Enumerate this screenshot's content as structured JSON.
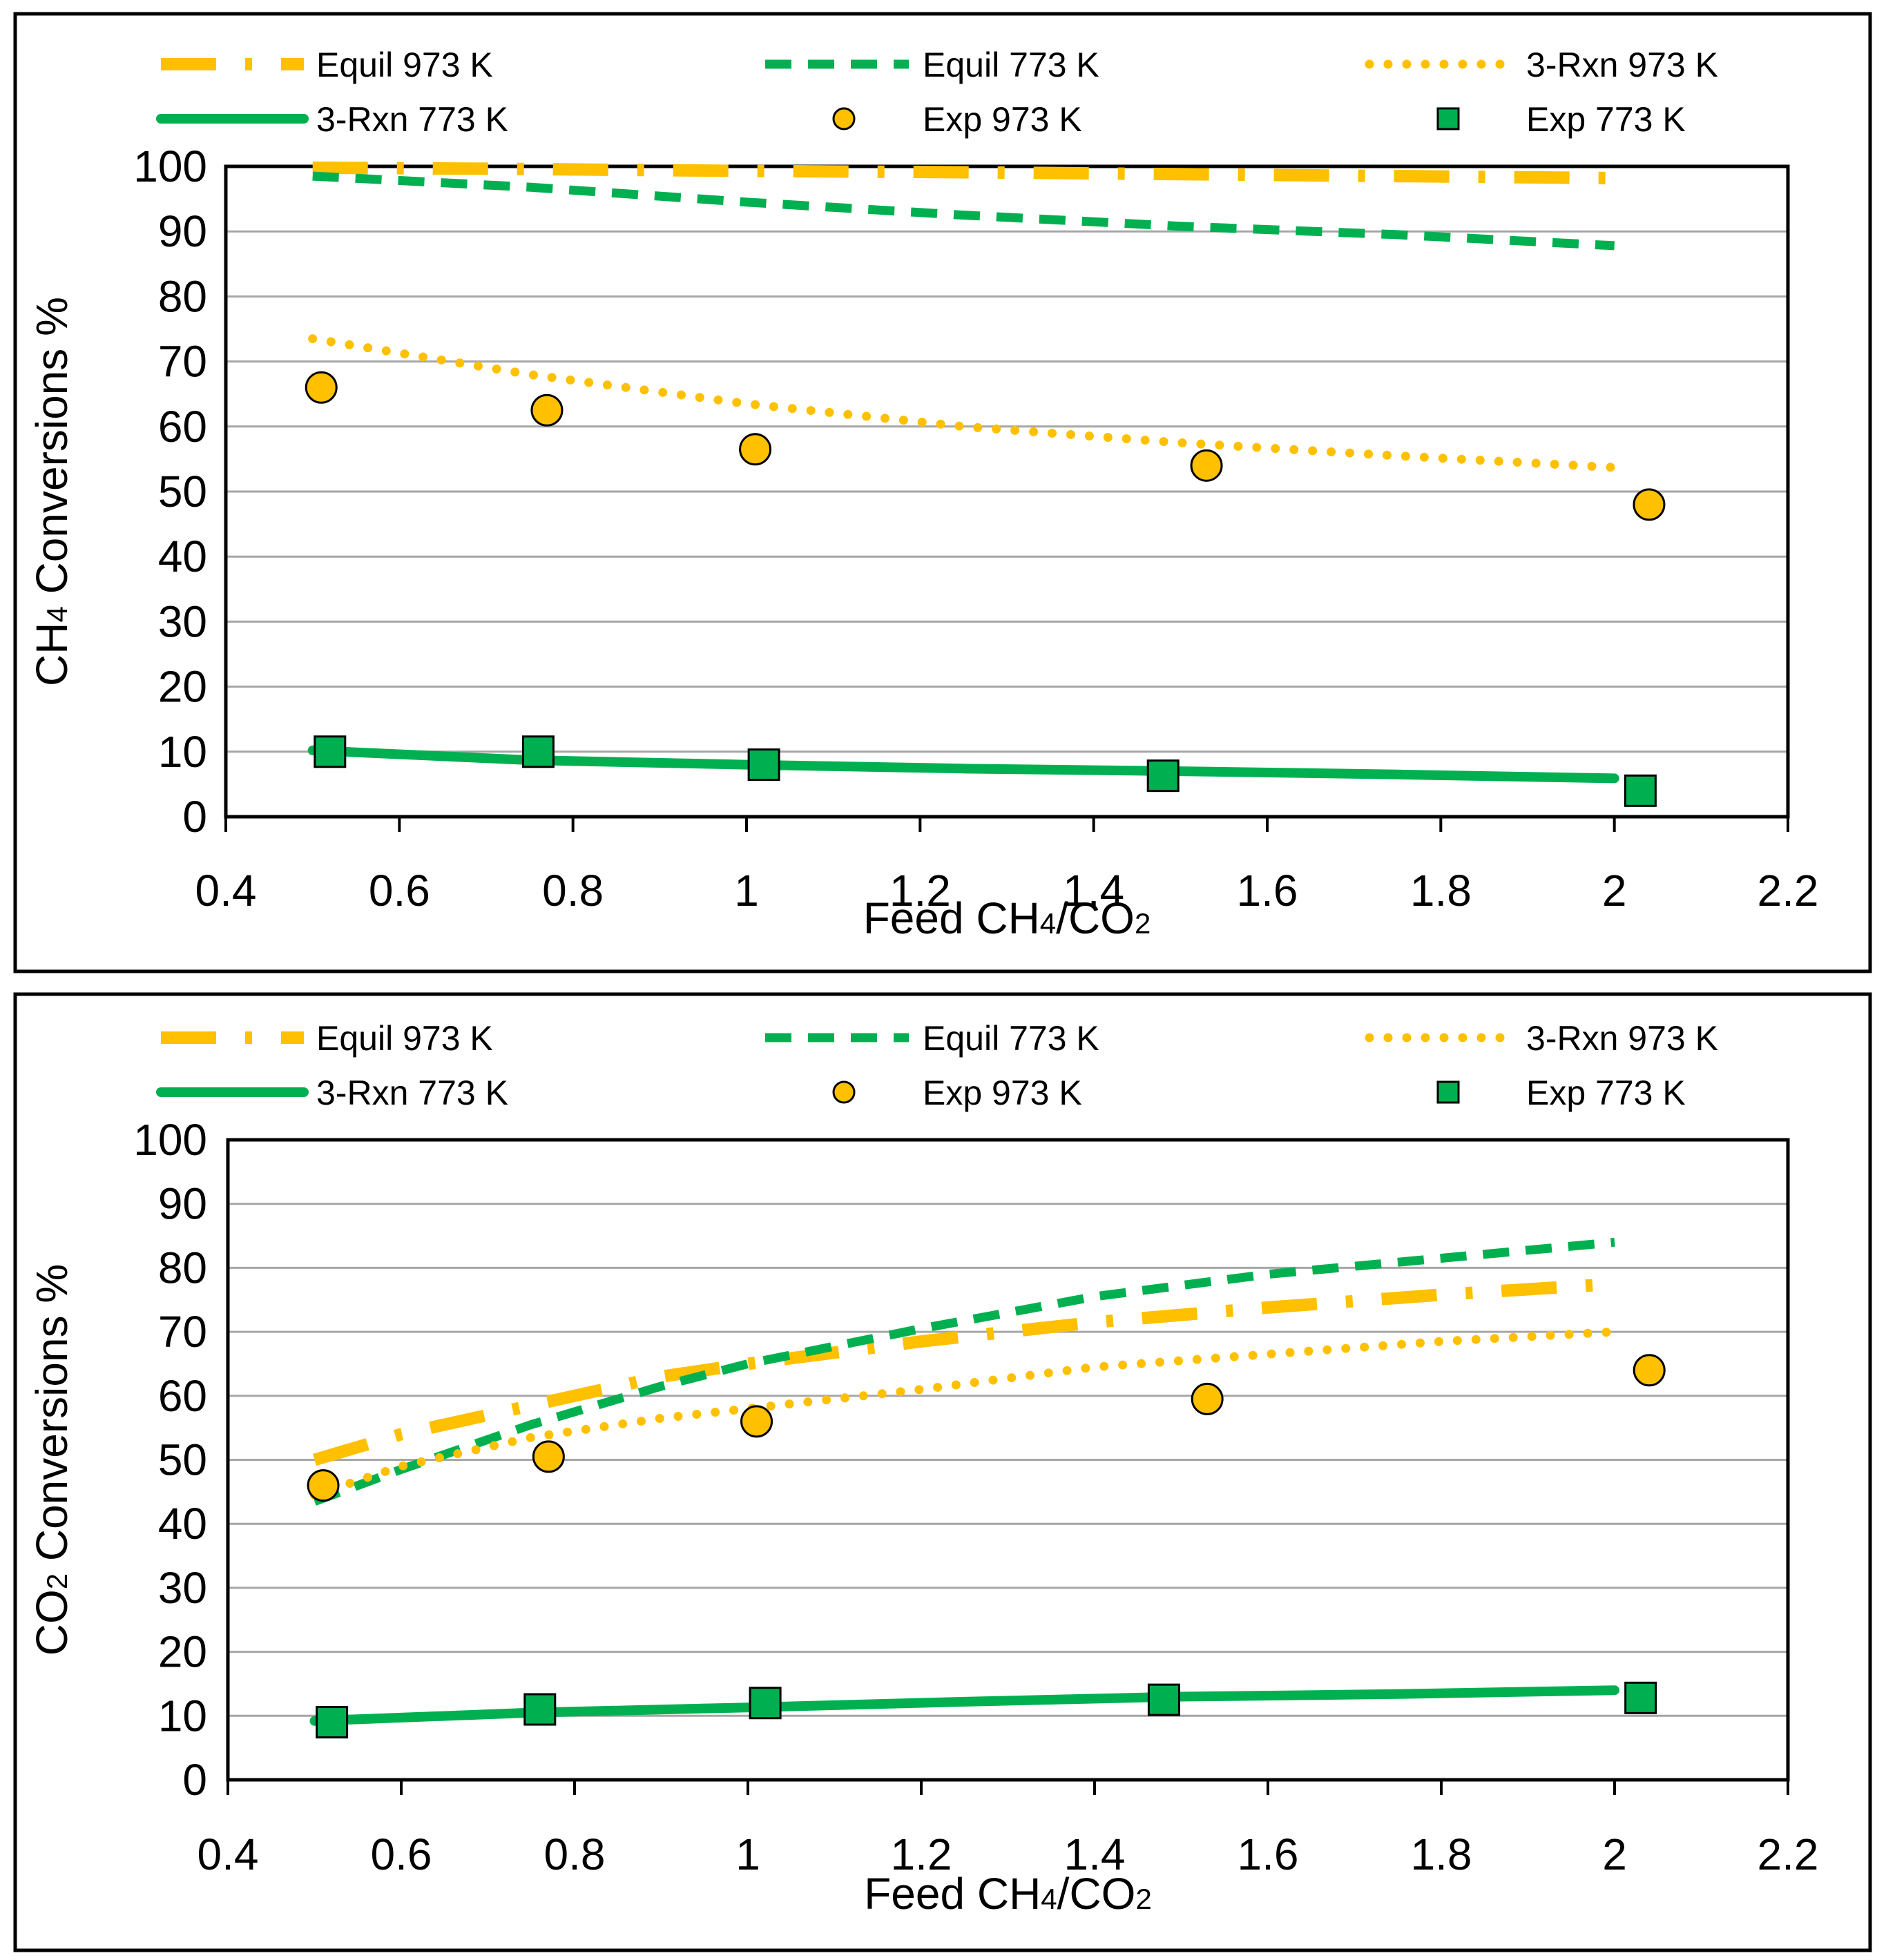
{
  "colors": {
    "gold": "#FFC000",
    "green": "#00B050",
    "grid": "#A6A6A6",
    "frame": "#000000"
  },
  "chart_data": [
    {
      "type": "line",
      "ylabel_parts": [
        "CH",
        "4",
        " Conversions %"
      ],
      "xlabel_parts": [
        "Feed CH",
        "4",
        "/CO",
        "2"
      ],
      "xlim": [
        0.4,
        2.2
      ],
      "ylim": [
        0,
        100
      ],
      "xticks": [
        "0.4",
        "0.6",
        "0.8",
        "1",
        "1.2",
        "1.4",
        "1.6",
        "1.8",
        "2",
        "2.2"
      ],
      "yticks": [
        "0",
        "10",
        "20",
        "30",
        "40",
        "50",
        "60",
        "70",
        "80",
        "90",
        "100"
      ],
      "grid": "horizontal",
      "legend_position": "top",
      "series": [
        {
          "name": "Equil 973 K",
          "style": "dashdot",
          "color": "gold",
          "x": [
            0.5,
            0.75,
            1.0,
            1.25,
            1.5,
            1.75,
            2.0
          ],
          "y": [
            99.8,
            99.6,
            99.3,
            99.1,
            98.8,
            98.5,
            98.2
          ]
        },
        {
          "name": "Equil 773 K",
          "style": "dashed",
          "color": "green",
          "x": [
            0.5,
            0.75,
            1.0,
            1.25,
            1.5,
            1.75,
            2.0
          ],
          "y": [
            98.5,
            96.8,
            94.5,
            92.5,
            90.8,
            89.5,
            87.8
          ]
        },
        {
          "name": "3-Rxn 973 K",
          "style": "dotted",
          "color": "gold",
          "x": [
            0.5,
            0.75,
            1.0,
            1.25,
            1.5,
            1.75,
            2.0
          ],
          "y": [
            73.5,
            68.0,
            63.5,
            60.0,
            57.5,
            55.5,
            53.7
          ]
        },
        {
          "name": "3-Rxn 773 K",
          "style": "solid",
          "color": "green",
          "x": [
            0.5,
            0.75,
            1.0,
            1.25,
            1.5,
            1.75,
            2.0
          ],
          "y": [
            10.2,
            8.7,
            8.0,
            7.4,
            7.0,
            6.5,
            5.9
          ]
        },
        {
          "name": "Exp 973 K",
          "style": "circle",
          "color": "gold",
          "x": [
            0.51,
            0.77,
            1.01,
            1.53,
            2.04
          ],
          "y": [
            66,
            62.5,
            56.5,
            54,
            48
          ]
        },
        {
          "name": "Exp 773 K",
          "style": "square",
          "color": "green",
          "x": [
            0.52,
            0.76,
            1.02,
            1.48,
            2.03
          ],
          "y": [
            10,
            10,
            8,
            6.3,
            4
          ]
        }
      ]
    },
    {
      "type": "line",
      "ylabel_parts": [
        "CO",
        "2",
        " Conversions %"
      ],
      "xlabel_parts": [
        "Feed CH",
        "4",
        "/CO",
        "2"
      ],
      "xlim": [
        0.4,
        2.2
      ],
      "ylim": [
        0,
        100
      ],
      "xticks": [
        "0.4",
        "0.6",
        "0.8",
        "1",
        "1.2",
        "1.4",
        "1.6",
        "1.8",
        "2",
        "2.2"
      ],
      "yticks": [
        "0",
        "10",
        "20",
        "30",
        "40",
        "50",
        "60",
        "70",
        "80",
        "90",
        "100"
      ],
      "grid": "horizontal",
      "legend_position": "top",
      "series": [
        {
          "name": "Equil 973 K",
          "style": "dashdot",
          "color": "gold",
          "x": [
            0.5,
            0.6,
            0.75,
            0.9,
            1.0,
            1.2,
            1.4,
            1.6,
            1.8,
            2.0
          ],
          "y": [
            50,
            54,
            58.5,
            63,
            65,
            68.5,
            71.5,
            73.8,
            75.8,
            77.5
          ]
        },
        {
          "name": "Equil 773 K",
          "style": "dashed",
          "color": "green",
          "x": [
            0.5,
            0.6,
            0.75,
            0.9,
            1.0,
            1.2,
            1.4,
            1.6,
            1.8,
            2.0
          ],
          "y": [
            43.5,
            48.5,
            55.5,
            61.5,
            65,
            70.5,
            75.5,
            79,
            81.5,
            84
          ]
        },
        {
          "name": "3-Rxn 973 K",
          "style": "dotted",
          "color": "gold",
          "x": [
            0.5,
            0.6,
            0.75,
            0.9,
            1.0,
            1.2,
            1.4,
            1.6,
            1.8,
            2.0
          ],
          "y": [
            44.5,
            49,
            53.5,
            56.5,
            58,
            61,
            64.5,
            66.5,
            68.5,
            70
          ]
        },
        {
          "name": "3-Rxn 773 K",
          "style": "solid",
          "color": "green",
          "x": [
            0.5,
            0.75,
            1.0,
            1.25,
            1.5,
            1.75,
            2.0
          ],
          "y": [
            9.2,
            10.5,
            11.3,
            12.2,
            13,
            13.4,
            14
          ]
        },
        {
          "name": "Exp 973 K",
          "style": "circle",
          "color": "gold",
          "x": [
            0.51,
            0.77,
            1.01,
            1.53,
            2.04
          ],
          "y": [
            46,
            50.5,
            56,
            59.5,
            64
          ]
        },
        {
          "name": "Exp 773 K",
          "style": "square",
          "color": "green",
          "x": [
            0.52,
            0.76,
            1.02,
            1.48,
            2.03
          ],
          "y": [
            9,
            11,
            12,
            12.5,
            12.8
          ]
        }
      ]
    }
  ]
}
